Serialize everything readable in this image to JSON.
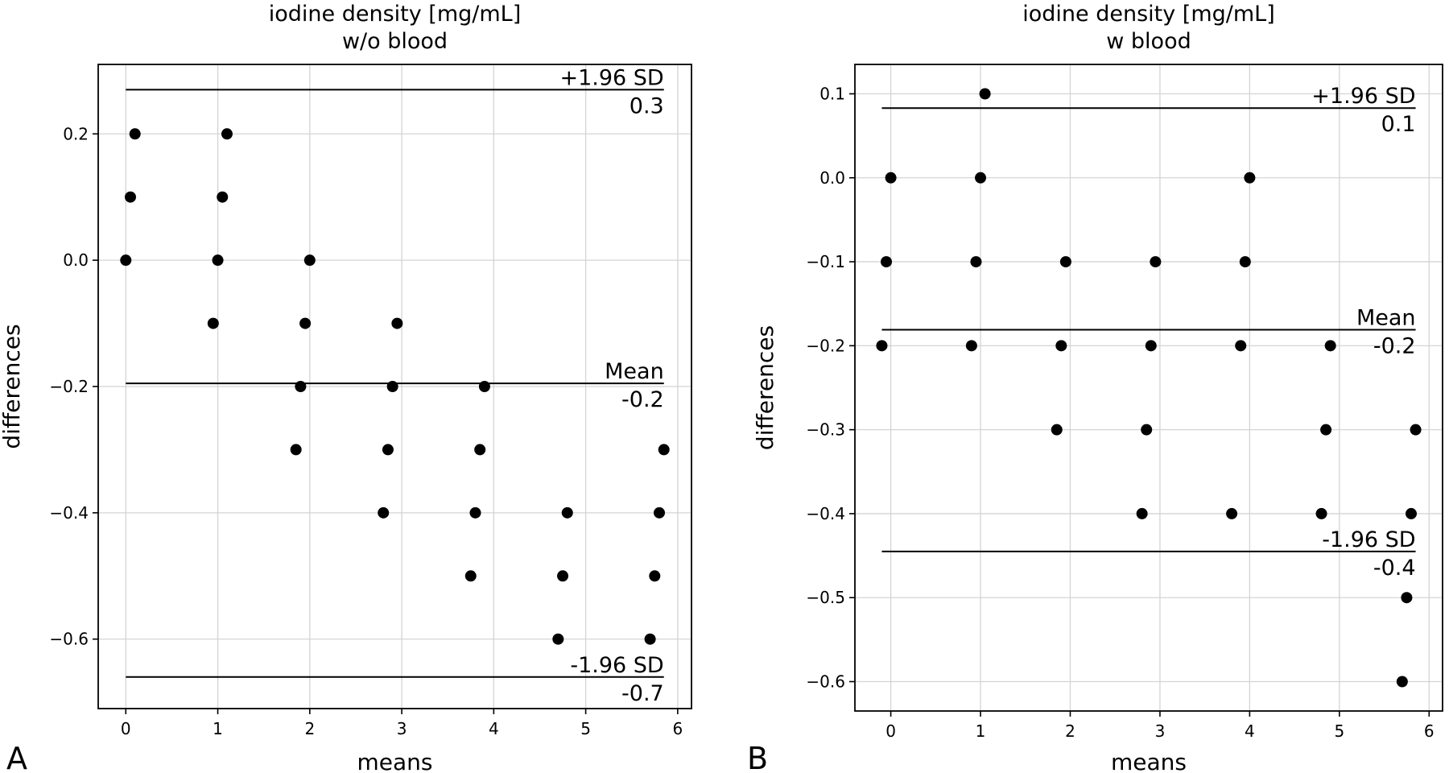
{
  "chart_data": [
    {
      "type": "scatter",
      "panel_label": "A",
      "title": [
        "iodine density [mg/mL]",
        "w/o blood"
      ],
      "xlabel": "means",
      "ylabel": "differences",
      "xlim": [
        -0.3,
        6.15
      ],
      "ylim": [
        -0.71,
        0.31
      ],
      "xticks": [
        0,
        1,
        2,
        3,
        4,
        5,
        6
      ],
      "yticks": [
        -0.6,
        -0.4,
        -0.2,
        0.0,
        0.2
      ],
      "ytick_labels": [
        "−0.6",
        "−0.4",
        "−0.2",
        "0.0",
        "0.2"
      ],
      "grid": true,
      "hlines": [
        {
          "name": "+1.96 SD",
          "y": 0.27,
          "value_label": "0.3"
        },
        {
          "name": "Mean",
          "y": -0.195,
          "value_label": "-0.2"
        },
        {
          "name": "-1.96 SD",
          "y": -0.66,
          "value_label": "-0.7"
        }
      ],
      "hline_x_range": [
        0,
        5.85
      ],
      "points": [
        [
          0.0,
          0.0
        ],
        [
          0.05,
          0.1
        ],
        [
          0.1,
          0.2
        ],
        [
          0.95,
          -0.1
        ],
        [
          1.0,
          0.0
        ],
        [
          1.05,
          0.1
        ],
        [
          1.1,
          0.2
        ],
        [
          1.85,
          -0.3
        ],
        [
          1.9,
          -0.2
        ],
        [
          1.95,
          -0.1
        ],
        [
          2.0,
          0.0
        ],
        [
          2.8,
          -0.4
        ],
        [
          2.85,
          -0.3
        ],
        [
          2.9,
          -0.2
        ],
        [
          2.95,
          -0.1
        ],
        [
          3.75,
          -0.5
        ],
        [
          3.8,
          -0.4
        ],
        [
          3.85,
          -0.3
        ],
        [
          3.9,
          -0.2
        ],
        [
          4.7,
          -0.6
        ],
        [
          4.75,
          -0.5
        ],
        [
          4.8,
          -0.4
        ],
        [
          5.7,
          -0.6
        ],
        [
          5.75,
          -0.5
        ],
        [
          5.8,
          -0.4
        ],
        [
          5.85,
          -0.3
        ]
      ]
    },
    {
      "type": "scatter",
      "panel_label": "B",
      "title": [
        "iodine density [mg/mL]",
        "w blood"
      ],
      "xlabel": "means",
      "ylabel": "differences",
      "xlim": [
        -0.4,
        6.15
      ],
      "ylim": [
        -0.635,
        0.135
      ],
      "xticks": [
        0,
        1,
        2,
        3,
        4,
        5,
        6
      ],
      "yticks": [
        -0.6,
        -0.5,
        -0.4,
        -0.3,
        -0.2,
        -0.1,
        0.0,
        0.1
      ],
      "ytick_labels": [
        "−0.6",
        "−0.5",
        "−0.4",
        "−0.3",
        "−0.2",
        "−0.1",
        "0.0",
        "0.1"
      ],
      "grid": true,
      "hlines": [
        {
          "name": "+1.96 SD",
          "y": 0.083,
          "value_label": "0.1"
        },
        {
          "name": "Mean",
          "y": -0.181,
          "value_label": "-0.2"
        },
        {
          "name": "-1.96 SD",
          "y": -0.445,
          "value_label": "-0.4"
        }
      ],
      "hline_x_range": [
        -0.1,
        5.85
      ],
      "points": [
        [
          -0.1,
          -0.2
        ],
        [
          -0.05,
          -0.1
        ],
        [
          0.0,
          0.0
        ],
        [
          0.9,
          -0.2
        ],
        [
          0.95,
          -0.1
        ],
        [
          1.0,
          0.0
        ],
        [
          1.05,
          0.1
        ],
        [
          1.85,
          -0.3
        ],
        [
          1.9,
          -0.2
        ],
        [
          1.95,
          -0.1
        ],
        [
          2.8,
          -0.4
        ],
        [
          2.85,
          -0.3
        ],
        [
          2.9,
          -0.2
        ],
        [
          2.95,
          -0.1
        ],
        [
          3.8,
          -0.4
        ],
        [
          3.9,
          -0.2
        ],
        [
          3.95,
          -0.1
        ],
        [
          4.0,
          0.0
        ],
        [
          4.8,
          -0.4
        ],
        [
          4.85,
          -0.3
        ],
        [
          4.9,
          -0.2
        ],
        [
          5.7,
          -0.6
        ],
        [
          5.75,
          -0.5
        ],
        [
          5.8,
          -0.4
        ],
        [
          5.85,
          -0.3
        ]
      ]
    }
  ]
}
